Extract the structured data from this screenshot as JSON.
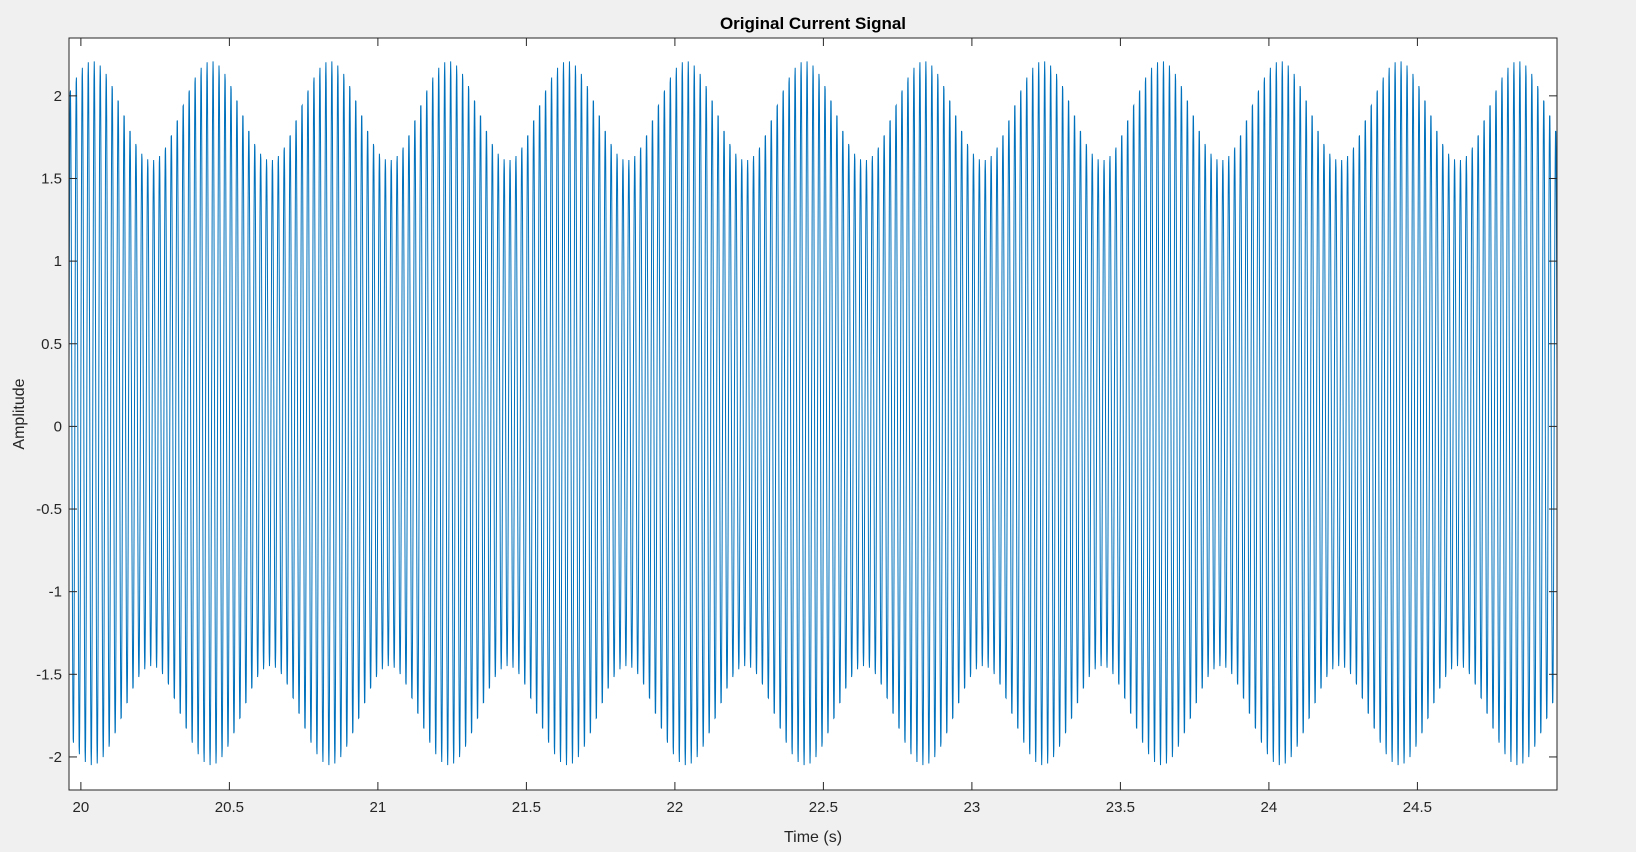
{
  "chart_data": {
    "type": "line",
    "title": "Original Current Signal",
    "xlabel": "Time (s)",
    "ylabel": "Amplitude",
    "xlim": [
      19.96,
      24.97
    ],
    "ylim": [
      -2.2,
      2.35
    ],
    "x_ticks": [
      20,
      20.5,
      21,
      21.5,
      22,
      22.5,
      23,
      23.5,
      24,
      24.5
    ],
    "x_tick_labels": [
      "20",
      "20.5",
      "21",
      "21.5",
      "22",
      "22.5",
      "23",
      "23.5",
      "24",
      "24.5"
    ],
    "y_ticks": [
      2,
      1.5,
      1,
      0.5,
      0,
      -0.5,
      -1,
      -1.5,
      -2
    ],
    "y_tick_labels": [
      "2",
      "1.5",
      "1",
      "0.5",
      "0",
      "-0.5",
      "-1",
      "-1.5",
      "-2"
    ],
    "grid": false,
    "series": [
      {
        "color": "#0072BD",
        "signal": {
          "t_start": 19.96,
          "t_end": 24.97,
          "sample_step": 0.001,
          "components": [
            {
              "kind": "sine",
              "amplitude": 1.83,
              "frequency_hz": 50,
              "phase": 0
            },
            {
              "kind": "sine",
              "amplitude": 0.3,
              "frequency_hz": 47.5,
              "phase": 0.6
            },
            {
              "kind": "offset",
              "value": 0.08
            }
          ]
        }
      }
    ]
  },
  "colors": {
    "figure_background": "#f0f0f0",
    "axes_background": "#ffffff",
    "axes_edge": "#262626",
    "line": "#0072BD"
  }
}
